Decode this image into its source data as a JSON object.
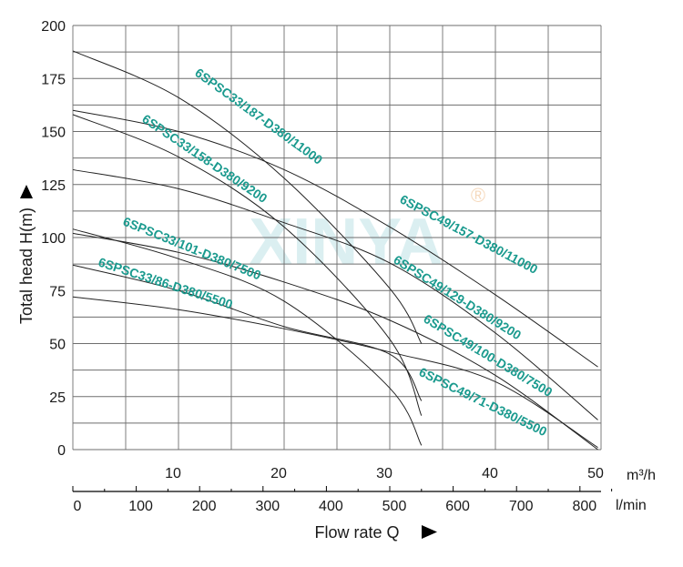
{
  "chart_data": {
    "type": "line",
    "xlabel": "Flow rate Q",
    "ylabel": "Total head H(m)",
    "x_unit_primary": "m³/h",
    "x_unit_secondary": "l/min",
    "xlim": [
      0,
      50
    ],
    "xlim_secondary": [
      0,
      833.3
    ],
    "ylim": [
      0,
      200
    ],
    "x_ticks": [
      10,
      20,
      30,
      40,
      50
    ],
    "x_ticks_secondary": [
      0,
      100,
      200,
      300,
      400,
      500,
      600,
      700,
      800
    ],
    "y_ticks": [
      0,
      25,
      50,
      75,
      100,
      125,
      150,
      175,
      200
    ],
    "grid": true,
    "watermark": "XINYA",
    "label_color": "#1a9a8e",
    "series": [
      {
        "name": "6SPSC33/187-D380/11000",
        "x": [
          0,
          10,
          20,
          30,
          33
        ],
        "y": [
          188,
          166,
          128,
          76,
          50
        ]
      },
      {
        "name": "6SPSC33/158-D380/9200",
        "x": [
          0,
          10,
          20,
          30,
          33
        ],
        "y": [
          158,
          138,
          105,
          52,
          16
        ]
      },
      {
        "name": "6SPSC33/101-D380/7500",
        "x": [
          0,
          10,
          20,
          30,
          33
        ],
        "y": [
          104,
          90,
          70,
          29,
          2
        ]
      },
      {
        "name": "6SPSC33/86-D380/5500",
        "x": [
          0,
          10,
          20,
          30,
          33
        ],
        "y": [
          87,
          75,
          58,
          45,
          23
        ]
      },
      {
        "name": "6SPSC49/157-D380/11000",
        "x": [
          0,
          10,
          20,
          30,
          40,
          49.7
        ],
        "y": [
          160,
          150,
          132,
          105,
          73,
          39
        ]
      },
      {
        "name": "6SPSC49/129-D380/9200",
        "x": [
          0,
          10,
          20,
          30,
          40,
          49.7
        ],
        "y": [
          132,
          123,
          107,
          88,
          55,
          14
        ]
      },
      {
        "name": "6SPSC49/100-D380/7500",
        "x": [
          0,
          10,
          20,
          30,
          40,
          49.7
        ],
        "y": [
          102,
          93,
          79,
          61,
          35,
          0
        ]
      },
      {
        "name": "6SPSC49/71-D380/5500",
        "x": [
          0,
          10,
          20,
          30,
          40,
          49.7
        ],
        "y": [
          72,
          66,
          57,
          46,
          32,
          1
        ]
      }
    ]
  }
}
